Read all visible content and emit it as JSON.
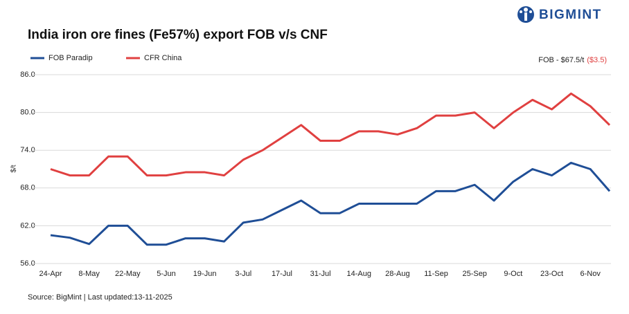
{
  "chart_data": {
    "type": "line",
    "title": "India iron ore fines (Fe57%) export FOB v/s CNF",
    "brand": "BIGMINT",
    "ylabel": "$/t",
    "source": "Source: BigMint | Last updated:13-11-2025",
    "annotation": {
      "text": "FOB - $67.5/t",
      "change": "($3.5)"
    },
    "categories": [
      "24-Apr",
      null,
      "8-May",
      null,
      "22-May",
      null,
      "5-Jun",
      null,
      "19-Jun",
      null,
      "3-Jul",
      null,
      "17-Jul",
      null,
      "31-Jul",
      null,
      "14-Aug",
      null,
      "28-Aug",
      null,
      "11-Sep",
      null,
      "25-Sep",
      null,
      "9-Oct",
      null,
      "23-Oct",
      null,
      "6-Nov",
      null
    ],
    "series": [
      {
        "name": "FOB Paradip",
        "color": "#1f4e96",
        "values": [
          60.5,
          60.1,
          59.1,
          62,
          62,
          59,
          59,
          60,
          60,
          59.5,
          62.5,
          63,
          64.5,
          66,
          64,
          64,
          65.5,
          65.5,
          65.5,
          65.5,
          67.5,
          67.5,
          68.5,
          66,
          69,
          71,
          70,
          72,
          71,
          67.5
        ]
      },
      {
        "name": "CFR China",
        "color": "#e04040",
        "values": [
          71,
          70,
          70,
          73,
          73,
          70,
          70,
          70.5,
          70.5,
          70,
          72.5,
          74,
          76,
          78,
          75.5,
          75.5,
          77,
          77,
          76.5,
          77.5,
          79.5,
          79.5,
          80,
          77.5,
          80,
          82,
          80.5,
          83,
          81,
          78
        ]
      }
    ],
    "ylim": [
      56,
      86
    ],
    "yticks": [
      {
        "value": 56,
        "label": "56.0"
      },
      {
        "value": 62,
        "label": "62.0"
      },
      {
        "value": 68,
        "label": "68.0"
      },
      {
        "value": 74,
        "label": "74.0"
      },
      {
        "value": 80,
        "label": "80.0"
      },
      {
        "value": 86,
        "label": "86.0"
      }
    ],
    "grid": true
  }
}
